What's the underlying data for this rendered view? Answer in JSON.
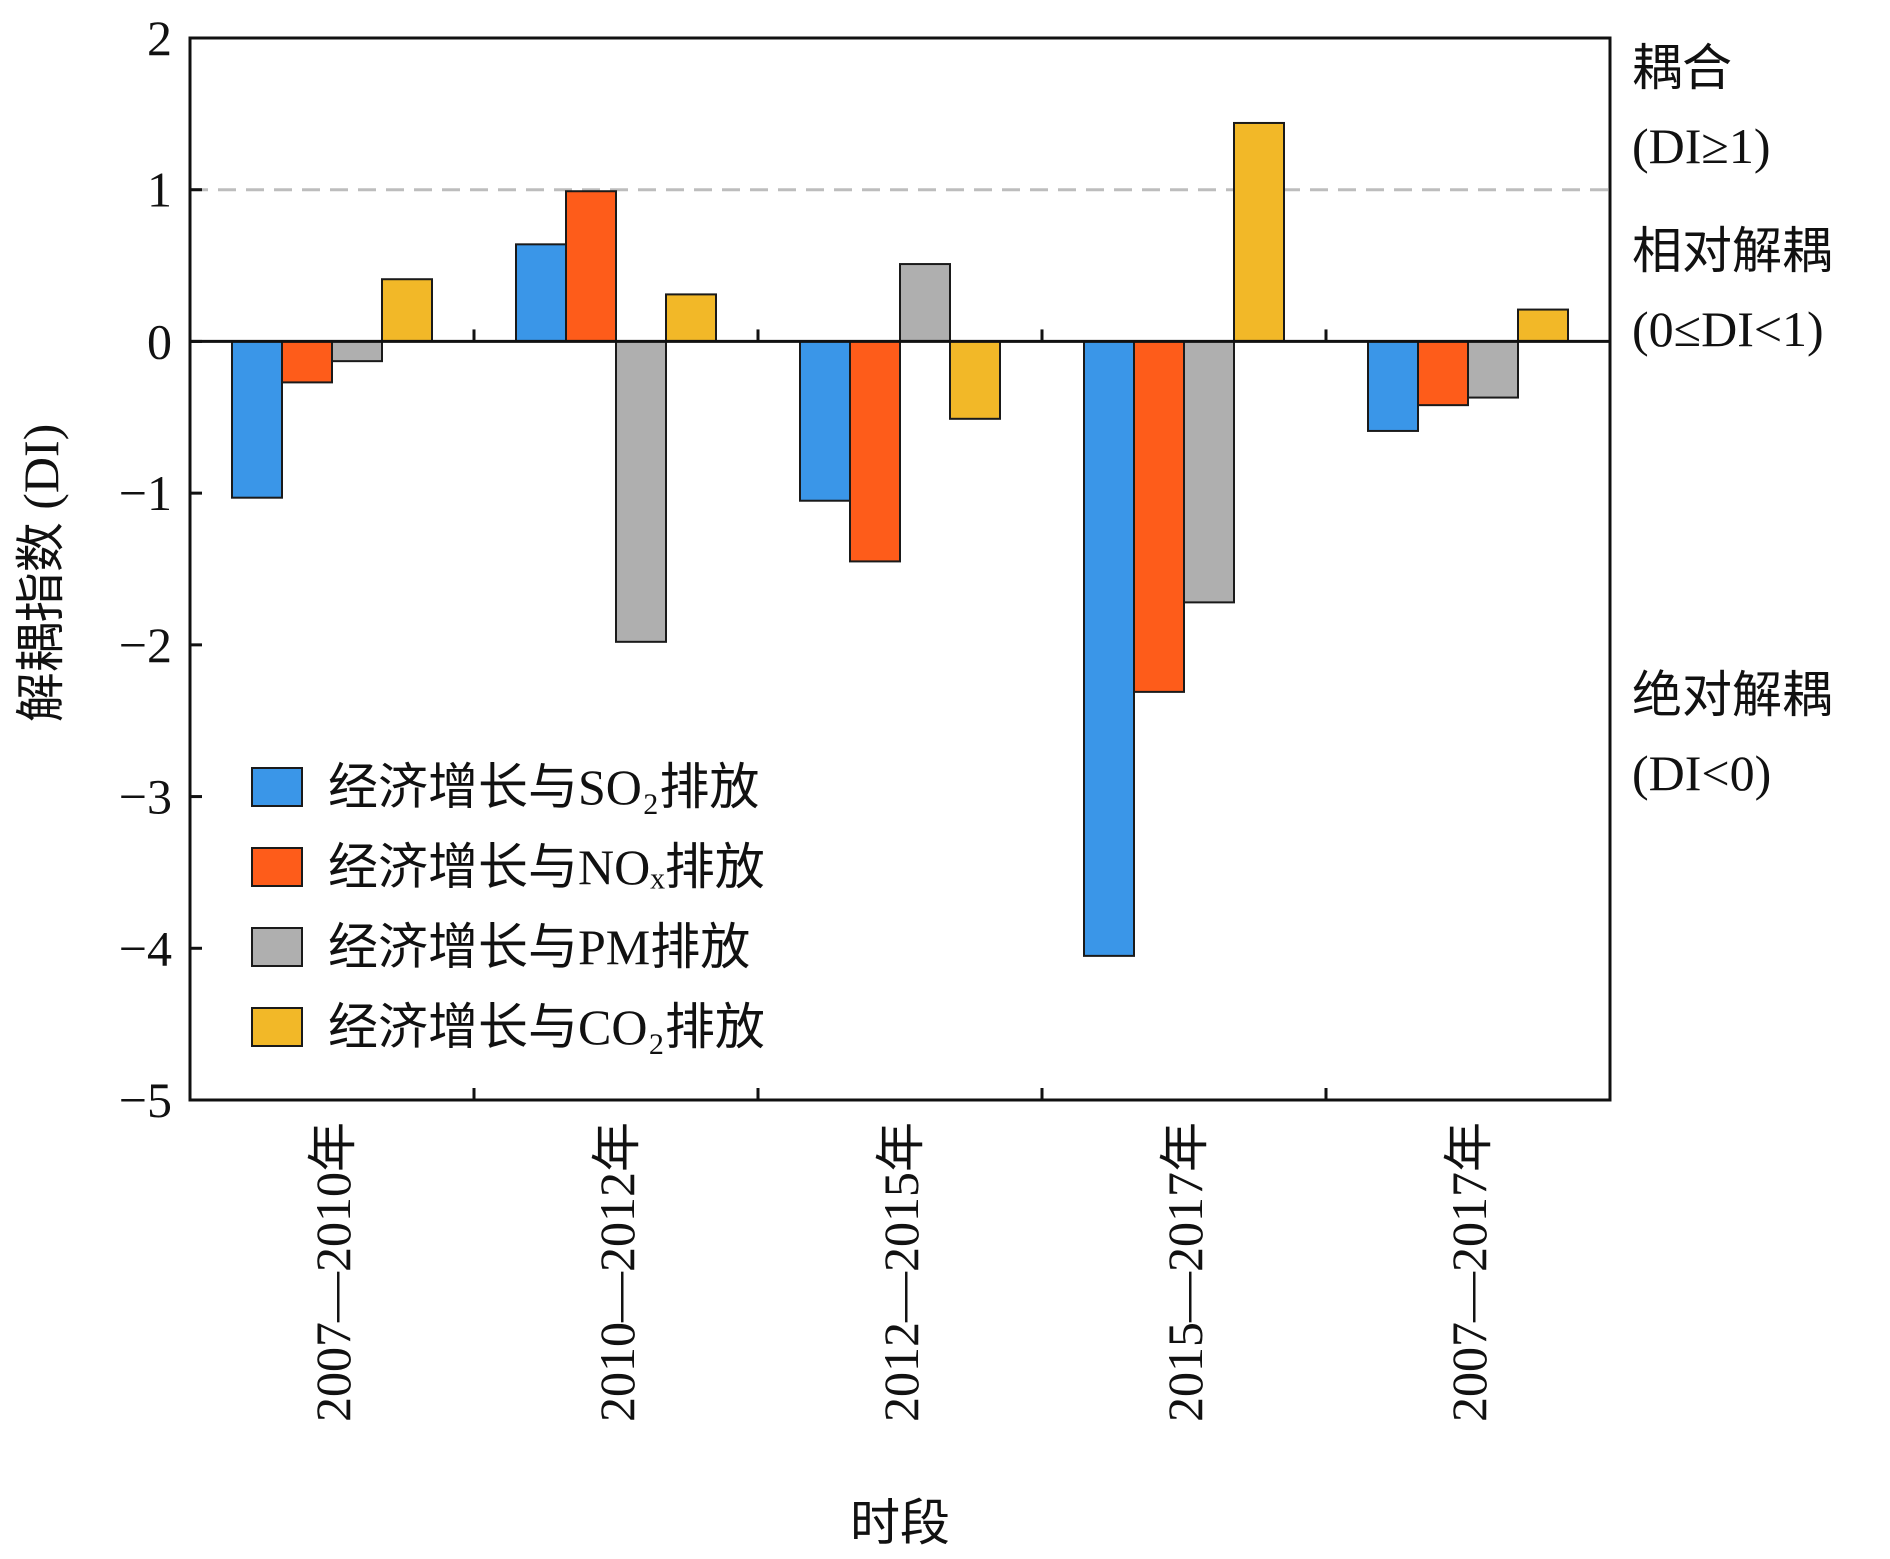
{
  "chart_data": {
    "type": "bar",
    "title": "",
    "xlabel": "时段",
    "ylabel": "解耦指数 (DI)",
    "ylim": [
      -5,
      2
    ],
    "yticks": [
      "−5",
      "−4",
      "−3",
      "−2",
      "−1",
      "0",
      "1",
      "2"
    ],
    "ytick_values": [
      -5,
      -4,
      -3,
      -2,
      -1,
      0,
      1,
      2
    ],
    "reference_line": {
      "y": 1,
      "style": "dashed",
      "color": "#bdbdbd"
    },
    "categories": [
      "2007—2010年",
      "2010—2012年",
      "2012—2015年",
      "2015—2017年",
      "2007—2017年"
    ],
    "series": [
      {
        "name": "经济增长与SO₂排放",
        "color": "#3a96e8",
        "values": [
          -1.03,
          0.64,
          -1.05,
          -4.05,
          -0.59
        ]
      },
      {
        "name": "经济增长与NOₓ排放",
        "color": "#fe5c1a",
        "values": [
          -0.27,
          0.99,
          -1.45,
          -2.31,
          -0.42
        ]
      },
      {
        "name": "经济增长与PM排放",
        "color": "#afafaf",
        "values": [
          -0.13,
          -1.98,
          0.51,
          -1.72,
          -0.37
        ]
      },
      {
        "name": "经济增长与CO₂排放",
        "color": "#f2b828",
        "values": [
          0.41,
          0.31,
          -0.51,
          1.44,
          0.21
        ]
      }
    ],
    "legend_position": "lower-left",
    "zones": [
      {
        "title": "耦合",
        "condition": "(DI≥1)"
      },
      {
        "title": "相对解耦",
        "condition": "(0≤DI<1)"
      },
      {
        "title": "绝对解耦",
        "condition": "(DI<0)"
      }
    ]
  }
}
